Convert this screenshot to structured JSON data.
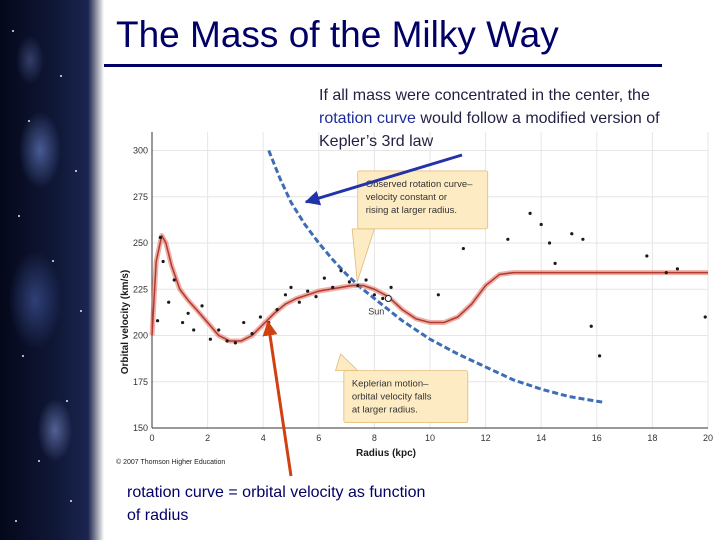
{
  "slide": {
    "title": "The Mass of the Milky Way",
    "note_top": {
      "part1": "If all mass were concentrated in the center, the ",
      "highlight": "rotation curve",
      "part2": " would follow a modified version of Kepler’s 3rd law"
    },
    "note_bottom": "rotation curve = orbital velocity as function of radius",
    "copyright": "© 2007 Thomson Higher Education"
  },
  "colors": {
    "title": "#000066",
    "observed_curve": "#e07060",
    "keplerian_curve": "#3d6db5",
    "callout_fill": "#fdebc4",
    "arrow_blue": "#2233aa",
    "arrow_orange": "#d04010"
  },
  "chart_data": {
    "type": "line",
    "title": "",
    "xlabel": "Radius (kpc)",
    "ylabel": "Orbital velocity (km/s)",
    "xlim": [
      0,
      20
    ],
    "ylim": [
      150,
      310
    ],
    "xticks": [
      0,
      2,
      4,
      6,
      8,
      10,
      12,
      14,
      16,
      18,
      20
    ],
    "yticks": [
      150,
      175,
      200,
      225,
      250,
      275,
      300
    ],
    "sun_radius_kpc": 8.5,
    "sun_label": "Sun",
    "series": [
      {
        "name": "Observed rotation curve",
        "style": "solid",
        "x": [
          0.0,
          0.15,
          0.35,
          0.5,
          0.7,
          1.0,
          1.3,
          1.6,
          2.0,
          2.4,
          2.8,
          3.2,
          3.6,
          4.0,
          4.4,
          4.8,
          5.2,
          5.6,
          6.0,
          6.4,
          6.8,
          7.2,
          7.6,
          8.0,
          8.5,
          9.0,
          9.5,
          10.0,
          10.5,
          11.0,
          11.5,
          12.0,
          12.5,
          13.0,
          13.5,
          14.0,
          15.0,
          16.0,
          17.0,
          18.0,
          19.0,
          20.0
        ],
        "y": [
          200,
          240,
          254,
          250,
          238,
          225,
          219,
          214,
          207,
          200,
          197,
          197,
          200,
          206,
          212,
          217,
          220,
          222,
          224,
          225,
          226,
          227,
          227,
          225,
          221,
          214,
          209,
          207,
          207,
          210,
          217,
          227,
          233,
          234,
          234,
          234,
          234,
          234,
          234,
          234,
          234,
          234
        ]
      },
      {
        "name": "Keplerian motion",
        "style": "dashed",
        "x": [
          4.2,
          4.6,
          5.0,
          5.5,
          6.0,
          6.5,
          7.0,
          7.5,
          8.0,
          8.5,
          9.0,
          9.5,
          10.0,
          10.5,
          11.0,
          12.0,
          13.0,
          14.0,
          15.0,
          16.2
        ],
        "y": [
          300,
          285,
          272,
          260,
          250,
          241,
          233,
          226,
          220,
          214,
          208,
          203,
          198,
          194,
          190,
          183,
          176,
          171,
          167,
          164
        ]
      },
      {
        "name": "Measured points",
        "style": "points",
        "x": [
          0.2,
          0.3,
          0.4,
          0.6,
          0.8,
          1.1,
          1.3,
          1.5,
          1.8,
          2.1,
          2.4,
          2.7,
          3.0,
          3.3,
          3.6,
          3.9,
          4.2,
          4.5,
          4.8,
          5.0,
          5.3,
          5.6,
          5.9,
          6.2,
          6.5,
          6.8,
          7.1,
          7.4,
          7.7,
          8.0,
          8.3,
          8.6,
          10.3,
          11.2,
          12.8,
          13.6,
          14.0,
          14.3,
          14.5,
          15.1,
          15.5,
          15.8,
          16.1,
          17.8,
          18.5,
          18.9,
          19.9
        ],
        "y": [
          208,
          253,
          240,
          218,
          230,
          207,
          212,
          203,
          216,
          198,
          203,
          197,
          196,
          207,
          201,
          210,
          207,
          214,
          222,
          226,
          218,
          224,
          221,
          231,
          226,
          235,
          229,
          227,
          230,
          222,
          220,
          226,
          222,
          247,
          252,
          266,
          260,
          250,
          239,
          255,
          252,
          205,
          189,
          243,
          234,
          236,
          210
        ]
      }
    ],
    "annotations": [
      {
        "name": "observed",
        "lines": [
          "Observed rotation curve–",
          "velocity constant or",
          "rising at larger radius."
        ]
      },
      {
        "name": "keplerian",
        "lines": [
          "Keplerian motion–",
          "orbital velocity falls",
          "at larger radius."
        ]
      }
    ]
  }
}
